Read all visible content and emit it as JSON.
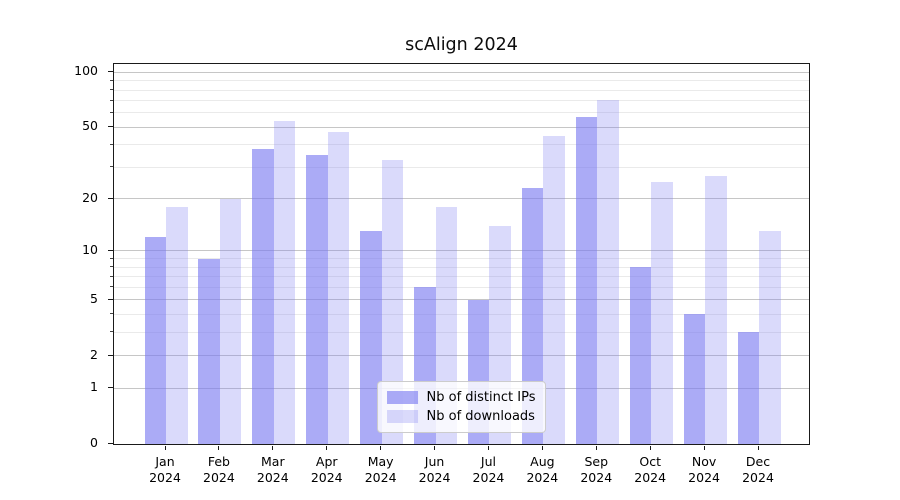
{
  "chart_data": {
    "type": "bar",
    "title": "scAlign 2024",
    "x_months": [
      "Jan",
      "Feb",
      "Mar",
      "Apr",
      "May",
      "Jun",
      "Jul",
      "Aug",
      "Sep",
      "Oct",
      "Nov",
      "Dec"
    ],
    "x_year": "2024",
    "series": [
      {
        "name": "Nb of distinct IPs",
        "key": "distinct-ips",
        "color": "rgba(122,122,240,0.63)",
        "values": [
          12,
          9,
          38,
          35,
          13,
          6,
          5,
          23,
          57,
          8,
          4,
          3
        ]
      },
      {
        "name": "Nb of downloads",
        "key": "downloads",
        "color": "rgba(122,122,240,0.28)",
        "values": [
          18,
          20,
          54,
          47,
          33,
          18,
          14,
          45,
          71,
          25,
          27,
          13
        ]
      }
    ],
    "yscale": "log1p",
    "ylim": [
      0,
      111
    ],
    "y_major_ticks": [
      0,
      1,
      2,
      5,
      10,
      20,
      50,
      100
    ],
    "y_minor_ticks": [
      3,
      4,
      6,
      7,
      8,
      9,
      30,
      40,
      60,
      70,
      80,
      90
    ],
    "grid": true,
    "legend_position": "lower center",
    "colors": {
      "grid_major": "#c6c6c6",
      "grid_minor": "#eaeaea",
      "spine": "#1a1a1a",
      "text": "#000000"
    }
  }
}
